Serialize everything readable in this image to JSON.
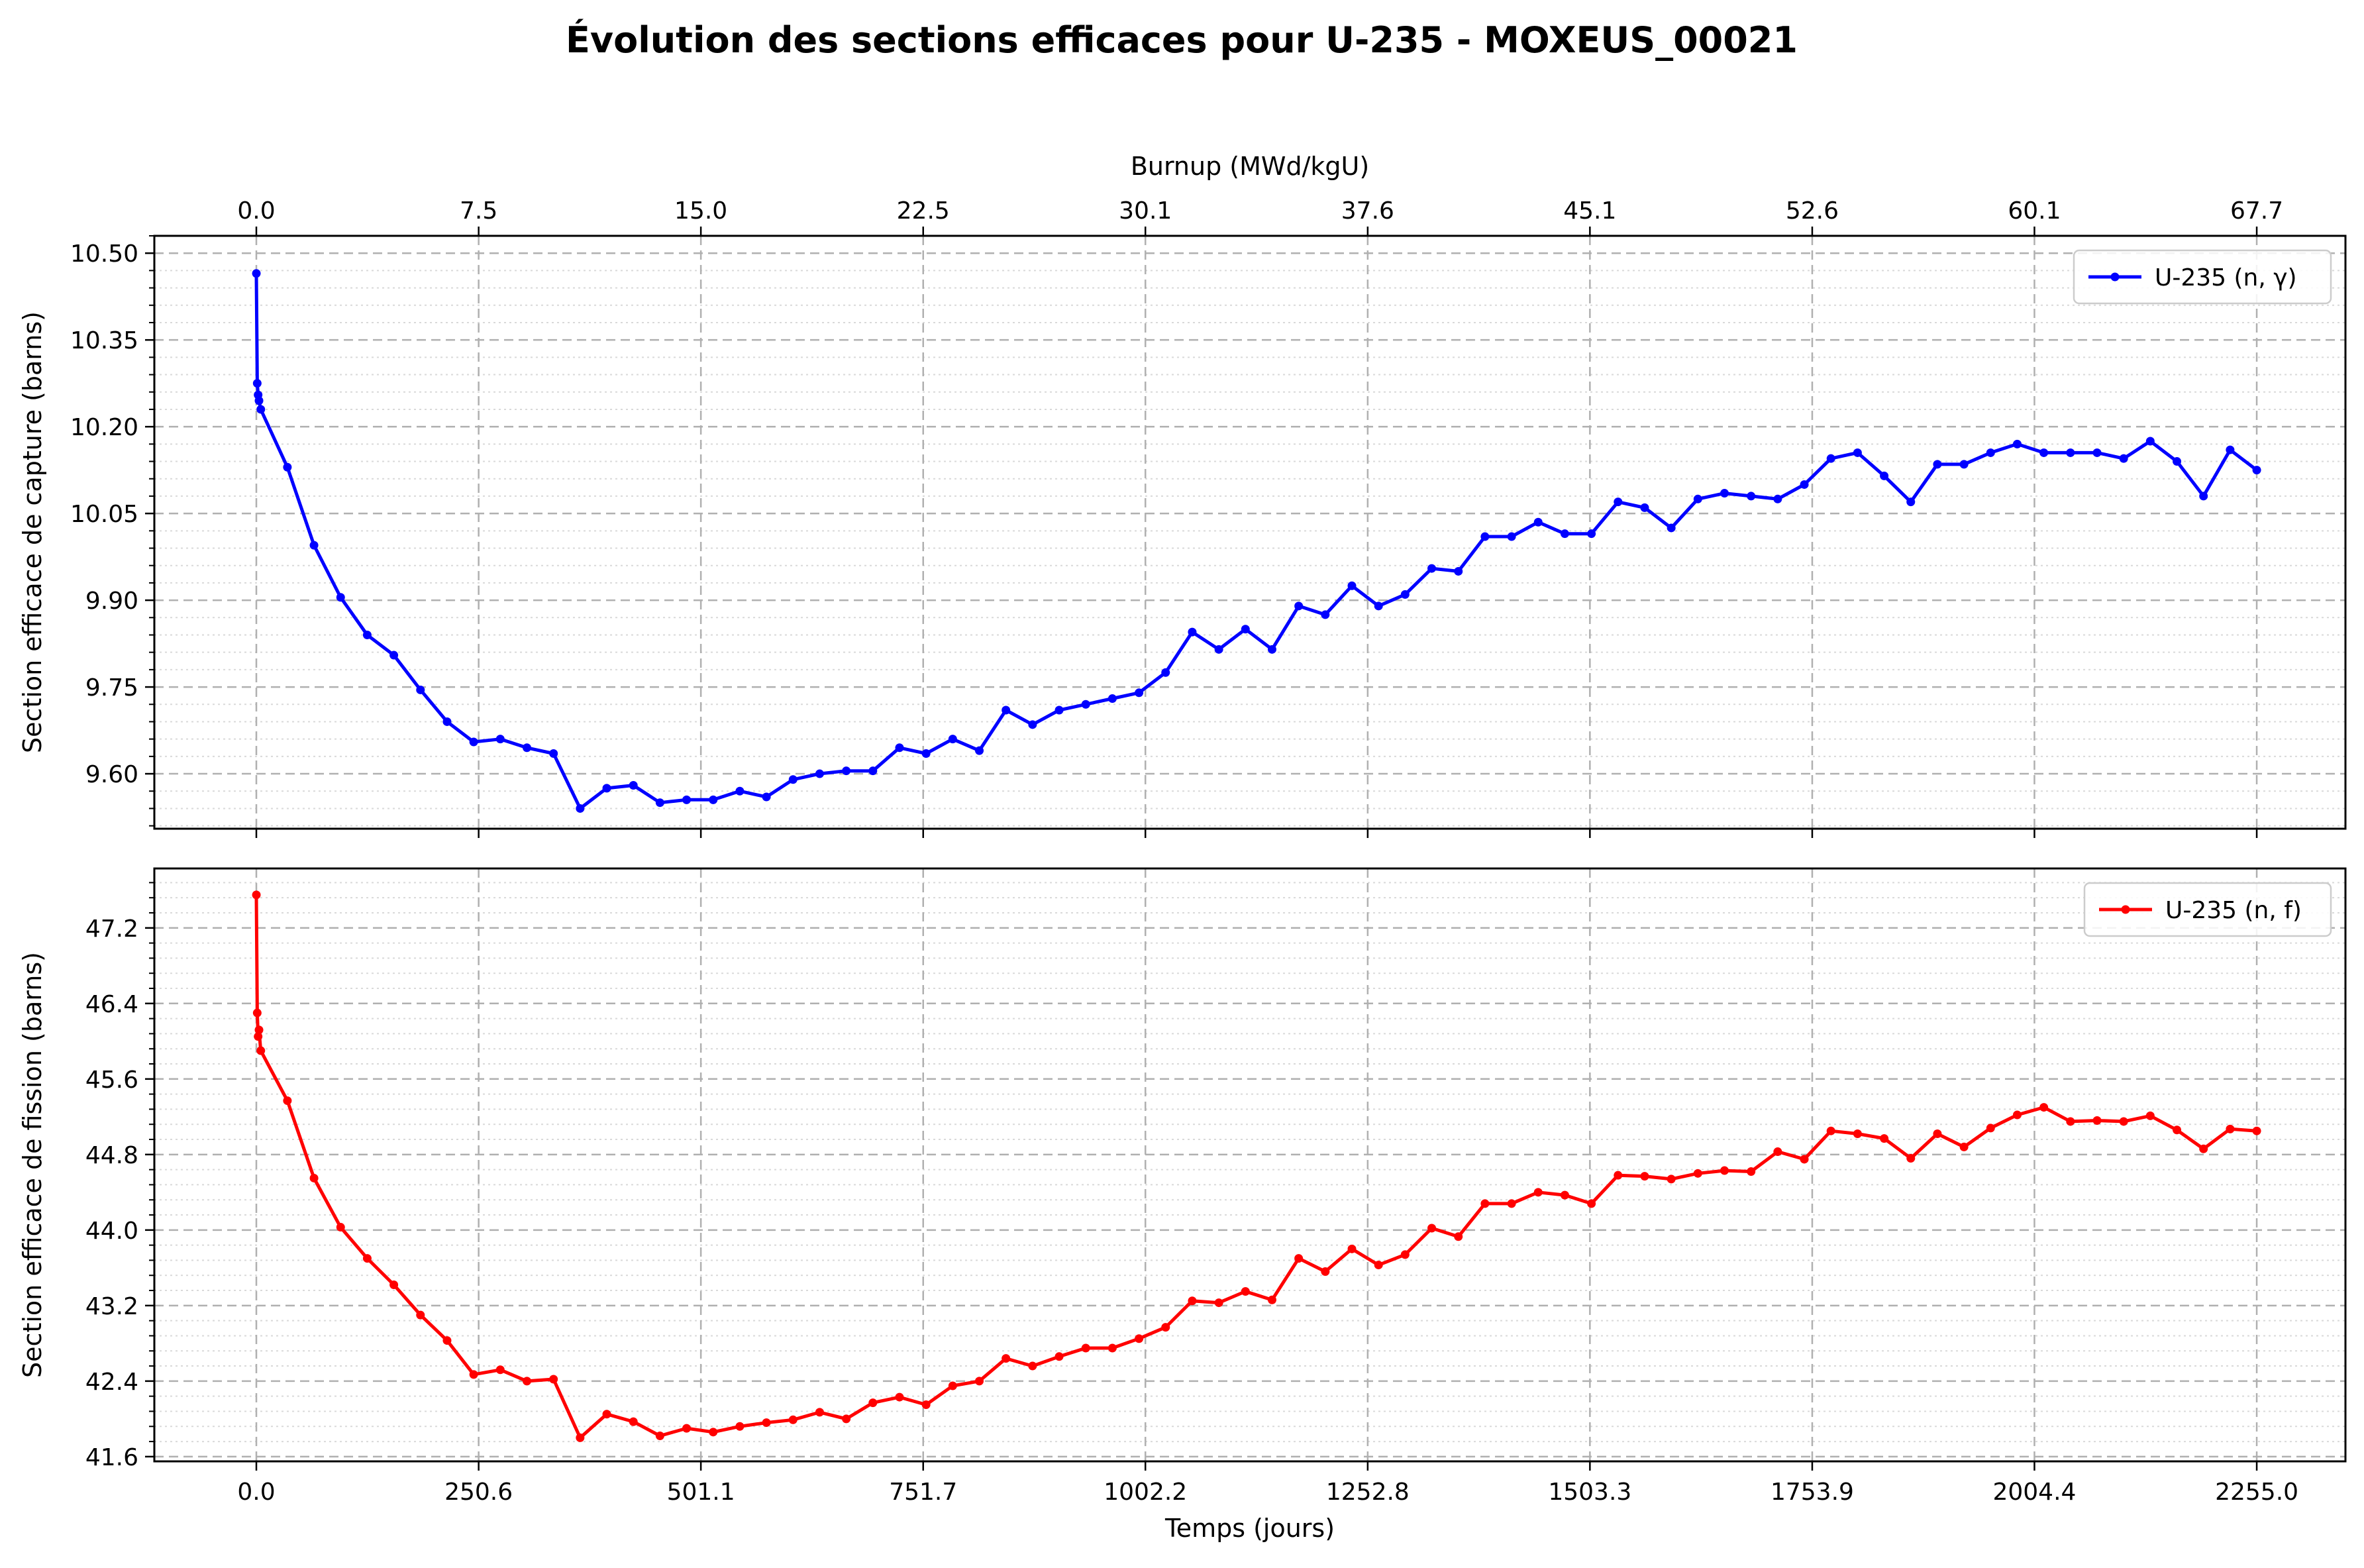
{
  "title": "Évolution des sections efficaces pour U-235 - MOXEUS_00021",
  "chart_data": [
    {
      "type": "line",
      "ylabel": "Section efficace de capture (barns)",
      "top_xlabel": "Burnup (MWd/kgU)",
      "top_ticks": [
        "0.0",
        "7.5",
        "15.0",
        "22.5",
        "30.1",
        "37.6",
        "45.1",
        "52.6",
        "60.1",
        "67.7"
      ],
      "x_ticks": [
        "0.0",
        "250.6",
        "501.1",
        "751.7",
        "1002.2",
        "1252.8",
        "1503.3",
        "1753.9",
        "2004.4",
        "2255.0"
      ],
      "y_ticks": [
        "9.60",
        "9.75",
        "9.90",
        "10.05",
        "10.20",
        "10.35",
        "10.50"
      ],
      "xlim": [
        -115,
        2355
      ],
      "ylim": [
        9.505,
        10.53
      ],
      "legend": "top-right",
      "grid": true,
      "series": [
        {
          "name": "U-235 (n, γ)",
          "color": "#0000ff",
          "x": [
            0,
            1,
            2,
            3,
            5,
            35,
            65,
            95,
            125,
            155,
            185,
            215,
            245,
            275,
            305,
            335,
            365,
            395,
            425,
            455,
            485,
            515,
            545,
            575,
            605,
            635,
            665,
            695,
            725,
            755,
            785,
            815,
            845,
            875,
            905,
            935,
            965,
            995,
            1025,
            1055,
            1085,
            1115,
            1145,
            1175,
            1205,
            1235,
            1265,
            1295,
            1325,
            1355,
            1385,
            1415,
            1445,
            1475,
            1505,
            1535,
            1565,
            1595,
            1625,
            1655,
            1685,
            1715,
            1745,
            1775,
            1805,
            1835,
            1865,
            1895,
            1925,
            1955,
            1985,
            2015,
            2045,
            2075,
            2105,
            2135,
            2165,
            2195,
            2225,
            2255
          ],
          "y": [
            10.465,
            10.275,
            10.255,
            10.245,
            10.23,
            10.13,
            9.995,
            9.905,
            9.84,
            9.805,
            9.745,
            9.69,
            9.655,
            9.66,
            9.645,
            9.635,
            9.54,
            9.575,
            9.58,
            9.55,
            9.555,
            9.555,
            9.57,
            9.56,
            9.59,
            9.6,
            9.605,
            9.605,
            9.645,
            9.635,
            9.66,
            9.64,
            9.71,
            9.685,
            9.71,
            9.72,
            9.73,
            9.74,
            9.775,
            9.845,
            9.815,
            9.85,
            9.815,
            9.89,
            9.875,
            9.925,
            9.89,
            9.91,
            9.955,
            9.95,
            10.01,
            10.01,
            10.035,
            10.015,
            10.015,
            10.07,
            10.06,
            10.025,
            10.075,
            10.085,
            10.08,
            10.075,
            10.1,
            10.145,
            10.155,
            10.115,
            10.07,
            10.135,
            10.135,
            10.155,
            10.17,
            10.155,
            10.155,
            10.155,
            10.145,
            10.175,
            10.14,
            10.08,
            10.16,
            10.125
          ]
        }
      ]
    },
    {
      "type": "line",
      "xlabel": "Temps (jours)",
      "ylabel": "Section efficace de fission (barns)",
      "x_ticks": [
        "0.0",
        "250.6",
        "501.1",
        "751.7",
        "1002.2",
        "1252.8",
        "1503.3",
        "1753.9",
        "2004.4",
        "2255.0"
      ],
      "y_ticks": [
        "41.6",
        "42.4",
        "43.2",
        "44.0",
        "44.8",
        "45.6",
        "46.4",
        "47.2"
      ],
      "xlim": [
        -115,
        2355
      ],
      "ylim": [
        41.55,
        47.83
      ],
      "legend": "top-right",
      "grid": true,
      "series": [
        {
          "name": "U-235 (n, f)",
          "color": "#ff0000",
          "x": [
            0,
            1,
            2,
            3,
            5,
            35,
            65,
            95,
            125,
            155,
            185,
            215,
            245,
            275,
            305,
            335,
            365,
            395,
            425,
            455,
            485,
            515,
            545,
            575,
            605,
            635,
            665,
            695,
            725,
            755,
            785,
            815,
            845,
            875,
            905,
            935,
            965,
            995,
            1025,
            1055,
            1085,
            1115,
            1145,
            1175,
            1205,
            1235,
            1265,
            1295,
            1325,
            1355,
            1385,
            1415,
            1445,
            1475,
            1505,
            1535,
            1565,
            1595,
            1625,
            1655,
            1685,
            1715,
            1745,
            1775,
            1805,
            1835,
            1865,
            1895,
            1925,
            1955,
            1985,
            2015,
            2045,
            2075,
            2105,
            2135,
            2165,
            2195,
            2225,
            2255
          ],
          "y": [
            47.55,
            46.3,
            46.05,
            46.12,
            45.9,
            45.37,
            44.55,
            44.03,
            43.7,
            43.42,
            43.1,
            42.83,
            42.47,
            42.52,
            42.4,
            42.42,
            41.8,
            42.05,
            41.97,
            41.82,
            41.9,
            41.86,
            41.92,
            41.96,
            41.99,
            42.07,
            42.0,
            42.17,
            42.23,
            42.15,
            42.35,
            42.4,
            42.64,
            42.56,
            42.66,
            42.75,
            42.75,
            42.85,
            42.97,
            43.25,
            43.23,
            43.35,
            43.26,
            43.7,
            43.56,
            43.8,
            43.63,
            43.74,
            44.02,
            43.93,
            44.28,
            44.28,
            44.4,
            44.37,
            44.28,
            44.58,
            44.57,
            44.54,
            44.6,
            44.63,
            44.62,
            44.83,
            44.75,
            45.05,
            45.02,
            44.97,
            44.76,
            45.02,
            44.88,
            45.08,
            45.22,
            45.3,
            45.15,
            45.16,
            45.15,
            45.21,
            45.06,
            44.86,
            45.07,
            45.05
          ]
        }
      ]
    }
  ]
}
